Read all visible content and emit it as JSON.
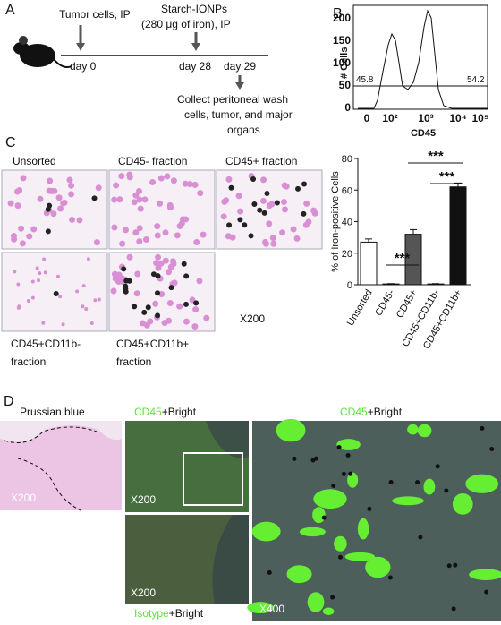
{
  "panel_a": {
    "label": "A",
    "injection_1": "Tumor cells, IP",
    "injection_2_line1": "Starch-IONPs",
    "injection_2_line2": "(280 μg of iron), IP",
    "day_0": "day 0",
    "day_28": "day 28",
    "day_29": "day 29",
    "collect": [
      "Collect peritoneal wash",
      "cells, tumor, and major",
      "organs"
    ]
  },
  "panel_b": {
    "label": "B",
    "ylabel": "# Cells",
    "xlabel": "CD45",
    "yticks": [
      "0",
      "50",
      "100",
      "150",
      "200"
    ],
    "xticks": [
      "0",
      "10²",
      "10³",
      "10⁴",
      "10⁵"
    ],
    "gate_left": "45.8",
    "gate_right": "54.2"
  },
  "panel_c": {
    "label": "C",
    "images": [
      "Unsorted",
      "CD45- fraction",
      "CD45+ fraction",
      [
        "CD45+CD11b-",
        "fraction"
      ],
      [
        "CD45+CD11b+",
        "fraction"
      ]
    ],
    "magnification": "X200"
  },
  "chart_data": {
    "type": "bar",
    "ylabel": "% of Iron-positive Cells",
    "categories": [
      "Unsorted",
      "CD45-",
      "CD45+",
      "CD45+CD11b-",
      "CD45+CD11b+"
    ],
    "values": [
      27,
      0.5,
      32,
      0.5,
      62
    ],
    "errors": [
      2,
      0.2,
      3,
      0.2,
      2.5
    ],
    "colors": [
      "#ffffff",
      "#ffffff",
      "#555555",
      "#ffffff",
      "#111111"
    ],
    "ylim": [
      0,
      80
    ],
    "yticks": [
      0,
      20,
      40,
      60,
      80
    ],
    "significance": [
      "***",
      "***",
      "***"
    ]
  },
  "panel_d": {
    "label": "D",
    "prussian": "Prussian blue",
    "cd45": "CD45",
    "bright": "+Bright",
    "cd45_2": "CD45",
    "bright_2": "+Bright",
    "isotype": "Isotype",
    "bright_3": "+Bright",
    "mag_1": "X200",
    "mag_2": "X200",
    "mag_3": "X200",
    "mag_4": "X400"
  }
}
